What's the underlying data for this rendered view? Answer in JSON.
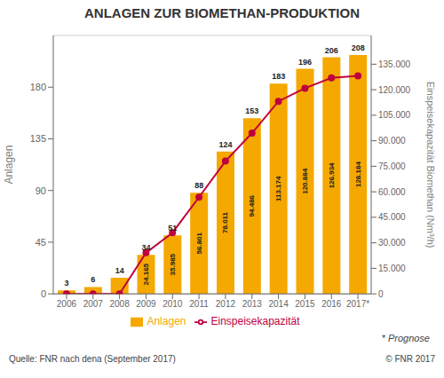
{
  "chart_data": {
    "type": "bar",
    "title": "ANLAGEN ZUR BIOMETHAN-PRODUKTION",
    "categories": [
      "2006",
      "2007",
      "2008",
      "2009",
      "2010",
      "2011",
      "2012",
      "2013",
      "2014",
      "2015",
      "2016",
      "2017*"
    ],
    "series": [
      {
        "name": "Anlagen",
        "type": "bar",
        "color": "#f5a800",
        "values": [
          3,
          6,
          14,
          34,
          51,
          88,
          124,
          153,
          183,
          196,
          206,
          208
        ]
      },
      {
        "name": "Einspeisekapazität",
        "type": "line",
        "axis": "y2",
        "color": "#c0003c",
        "marker": "circle",
        "values": [
          0,
          0,
          0,
          24165,
          35985,
          56801,
          78011,
          94486,
          113174,
          120884,
          126934,
          128184
        ],
        "value_labels": [
          null,
          null,
          null,
          "24.165",
          "35.985",
          "56.801",
          "78.011",
          "94.486",
          "113.174",
          "120.884",
          "126.934",
          "128.184"
        ]
      }
    ],
    "data_labels": true,
    "ylabel": "Anlagen",
    "y2label": "Einspeisekapazität Biomethan (Nm³/h)",
    "ylim": [
      0,
      225
    ],
    "yticks": [
      0,
      45,
      90,
      135,
      180
    ],
    "y2lim": [
      0,
      151875
    ],
    "y2ticks": [
      0,
      {
        "value": 15000,
        "label": "15.000"
      },
      {
        "value": 30000,
        "label": "30.000"
      },
      {
        "value": 45000,
        "label": "45.000"
      },
      {
        "value": 60000,
        "label": "60.000"
      },
      {
        "value": 75000,
        "label": "75.000"
      },
      {
        "value": 90000,
        "label": "90.000"
      },
      {
        "value": 105000,
        "label": "105.000"
      },
      {
        "value": 120000,
        "label": "120.000"
      },
      {
        "value": 135000,
        "label": "135.000"
      }
    ],
    "grid": true,
    "legend": "bottom",
    "annotations": [
      "* Prognose",
      "Quelle: FNR nach dena (September 2017)",
      "© FNR 2017"
    ]
  }
}
